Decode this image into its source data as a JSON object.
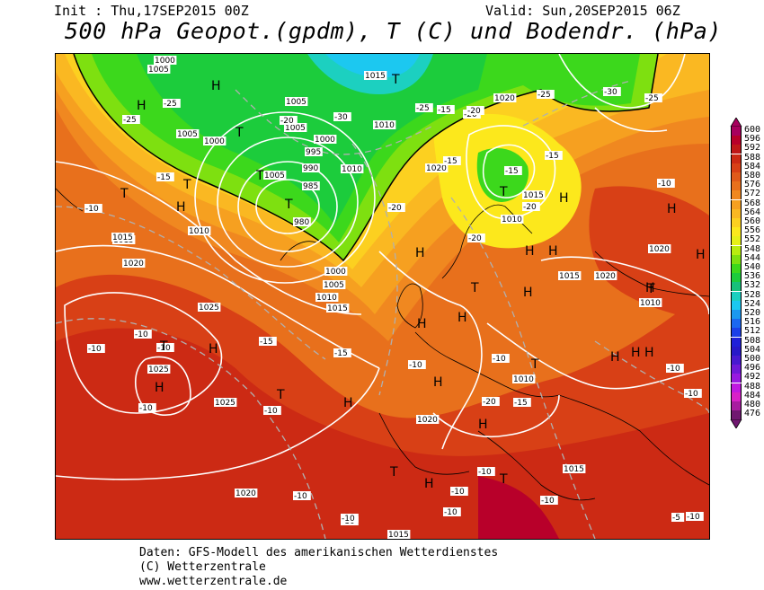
{
  "header": {
    "init": "Init : Thu,17SEP2015 00Z",
    "valid": "Valid: Sun,20SEP2015 06Z",
    "title": "500 hPa Geopot.(gpdm), T (C) und Bodendr. (hPa)"
  },
  "footer": {
    "line1": "Daten: GFS-Modell des amerikanischen Wetterdienstes",
    "line2": "(C) Wetterzentrale",
    "line3": "www.wetterzentrale.de"
  },
  "legend": {
    "levels": [
      {
        "label": "600",
        "color": "#a8005e"
      },
      {
        "label": "596",
        "color": "#b8002a"
      },
      {
        "label": "592",
        "color": "#c01818"
      },
      {
        "label": "588",
        "color": "#cc2a14"
      },
      {
        "label": "584",
        "color": "#d84016"
      },
      {
        "label": "580",
        "color": "#e05a1a"
      },
      {
        "label": "576",
        "color": "#e8701c"
      },
      {
        "label": "572",
        "color": "#f08820"
      },
      {
        "label": "568",
        "color": "#f6a020"
      },
      {
        "label": "564",
        "color": "#fab822"
      },
      {
        "label": "560",
        "color": "#fcd020"
      },
      {
        "label": "556",
        "color": "#fce81c"
      },
      {
        "label": "552",
        "color": "#e6f018"
      },
      {
        "label": "548",
        "color": "#b8ec10"
      },
      {
        "label": "544",
        "color": "#7ee010"
      },
      {
        "label": "540",
        "color": "#3cd81c"
      },
      {
        "label": "536",
        "color": "#1ccc3c"
      },
      {
        "label": "532",
        "color": "#18c07a"
      },
      {
        "label": "528",
        "color": "#1cd0c0"
      },
      {
        "label": "524",
        "color": "#1cc8f0"
      },
      {
        "label": "520",
        "color": "#1c98f0"
      },
      {
        "label": "516",
        "color": "#1c68f0"
      },
      {
        "label": "512",
        "color": "#1c40e8"
      },
      {
        "label": "508",
        "color": "#2020d8"
      },
      {
        "label": "504",
        "color": "#2818c8"
      },
      {
        "label": "500",
        "color": "#4818d0"
      },
      {
        "label": "496",
        "color": "#7018d8"
      },
      {
        "label": "492",
        "color": "#9818e0"
      },
      {
        "label": "488",
        "color": "#c018e0"
      },
      {
        "label": "484",
        "color": "#d820c8"
      },
      {
        "label": "480",
        "color": "#a81ca0"
      },
      {
        "label": "476",
        "color": "#701870"
      }
    ]
  },
  "map_labels": {
    "highs": [
      "H",
      "H",
      "H",
      "H",
      "H",
      "H",
      "H",
      "H",
      "H",
      "H",
      "H",
      "H",
      "H",
      "H",
      "H",
      "H",
      "H",
      "H",
      "H",
      "H",
      "H",
      "H"
    ],
    "lows": [
      "T",
      "T",
      "T",
      "T",
      "T",
      "T",
      "T",
      "T",
      "T",
      "T",
      "T",
      "T",
      "T",
      "T"
    ],
    "isobars": [
      "1000",
      "1005",
      "1005",
      "1000",
      "1005",
      "1005",
      "1010",
      "1015",
      "1020",
      "1000",
      "995",
      "990",
      "985",
      "980",
      "1010",
      "1005",
      "1010",
      "1015",
      "1020",
      "1020",
      "1025",
      "1025",
      "1025",
      "1020",
      "1010",
      "1015",
      "1010",
      "1020",
      "1020",
      "1015",
      "1015",
      "1010",
      "1000",
      "1005",
      "1010",
      "1015",
      "1015",
      "1020",
      "1015"
    ],
    "temps": [
      "-25",
      "-25",
      "-20",
      "-15",
      "-10",
      "-15",
      "-20",
      "-30",
      "-25",
      "-20",
      "-15",
      "-25",
      "-30",
      "-25",
      "-15",
      "-20",
      "-15",
      "-20",
      "-20",
      "-10",
      "-15",
      "-10",
      "-10",
      "-10",
      "-10",
      "-15",
      "-10",
      "-10",
      "-10",
      "-15",
      "-20",
      "-10",
      "-10",
      "-10",
      "-10",
      "-10",
      "-5",
      "-10",
      "-10",
      "-10",
      "-10",
      "-10"
    ]
  }
}
